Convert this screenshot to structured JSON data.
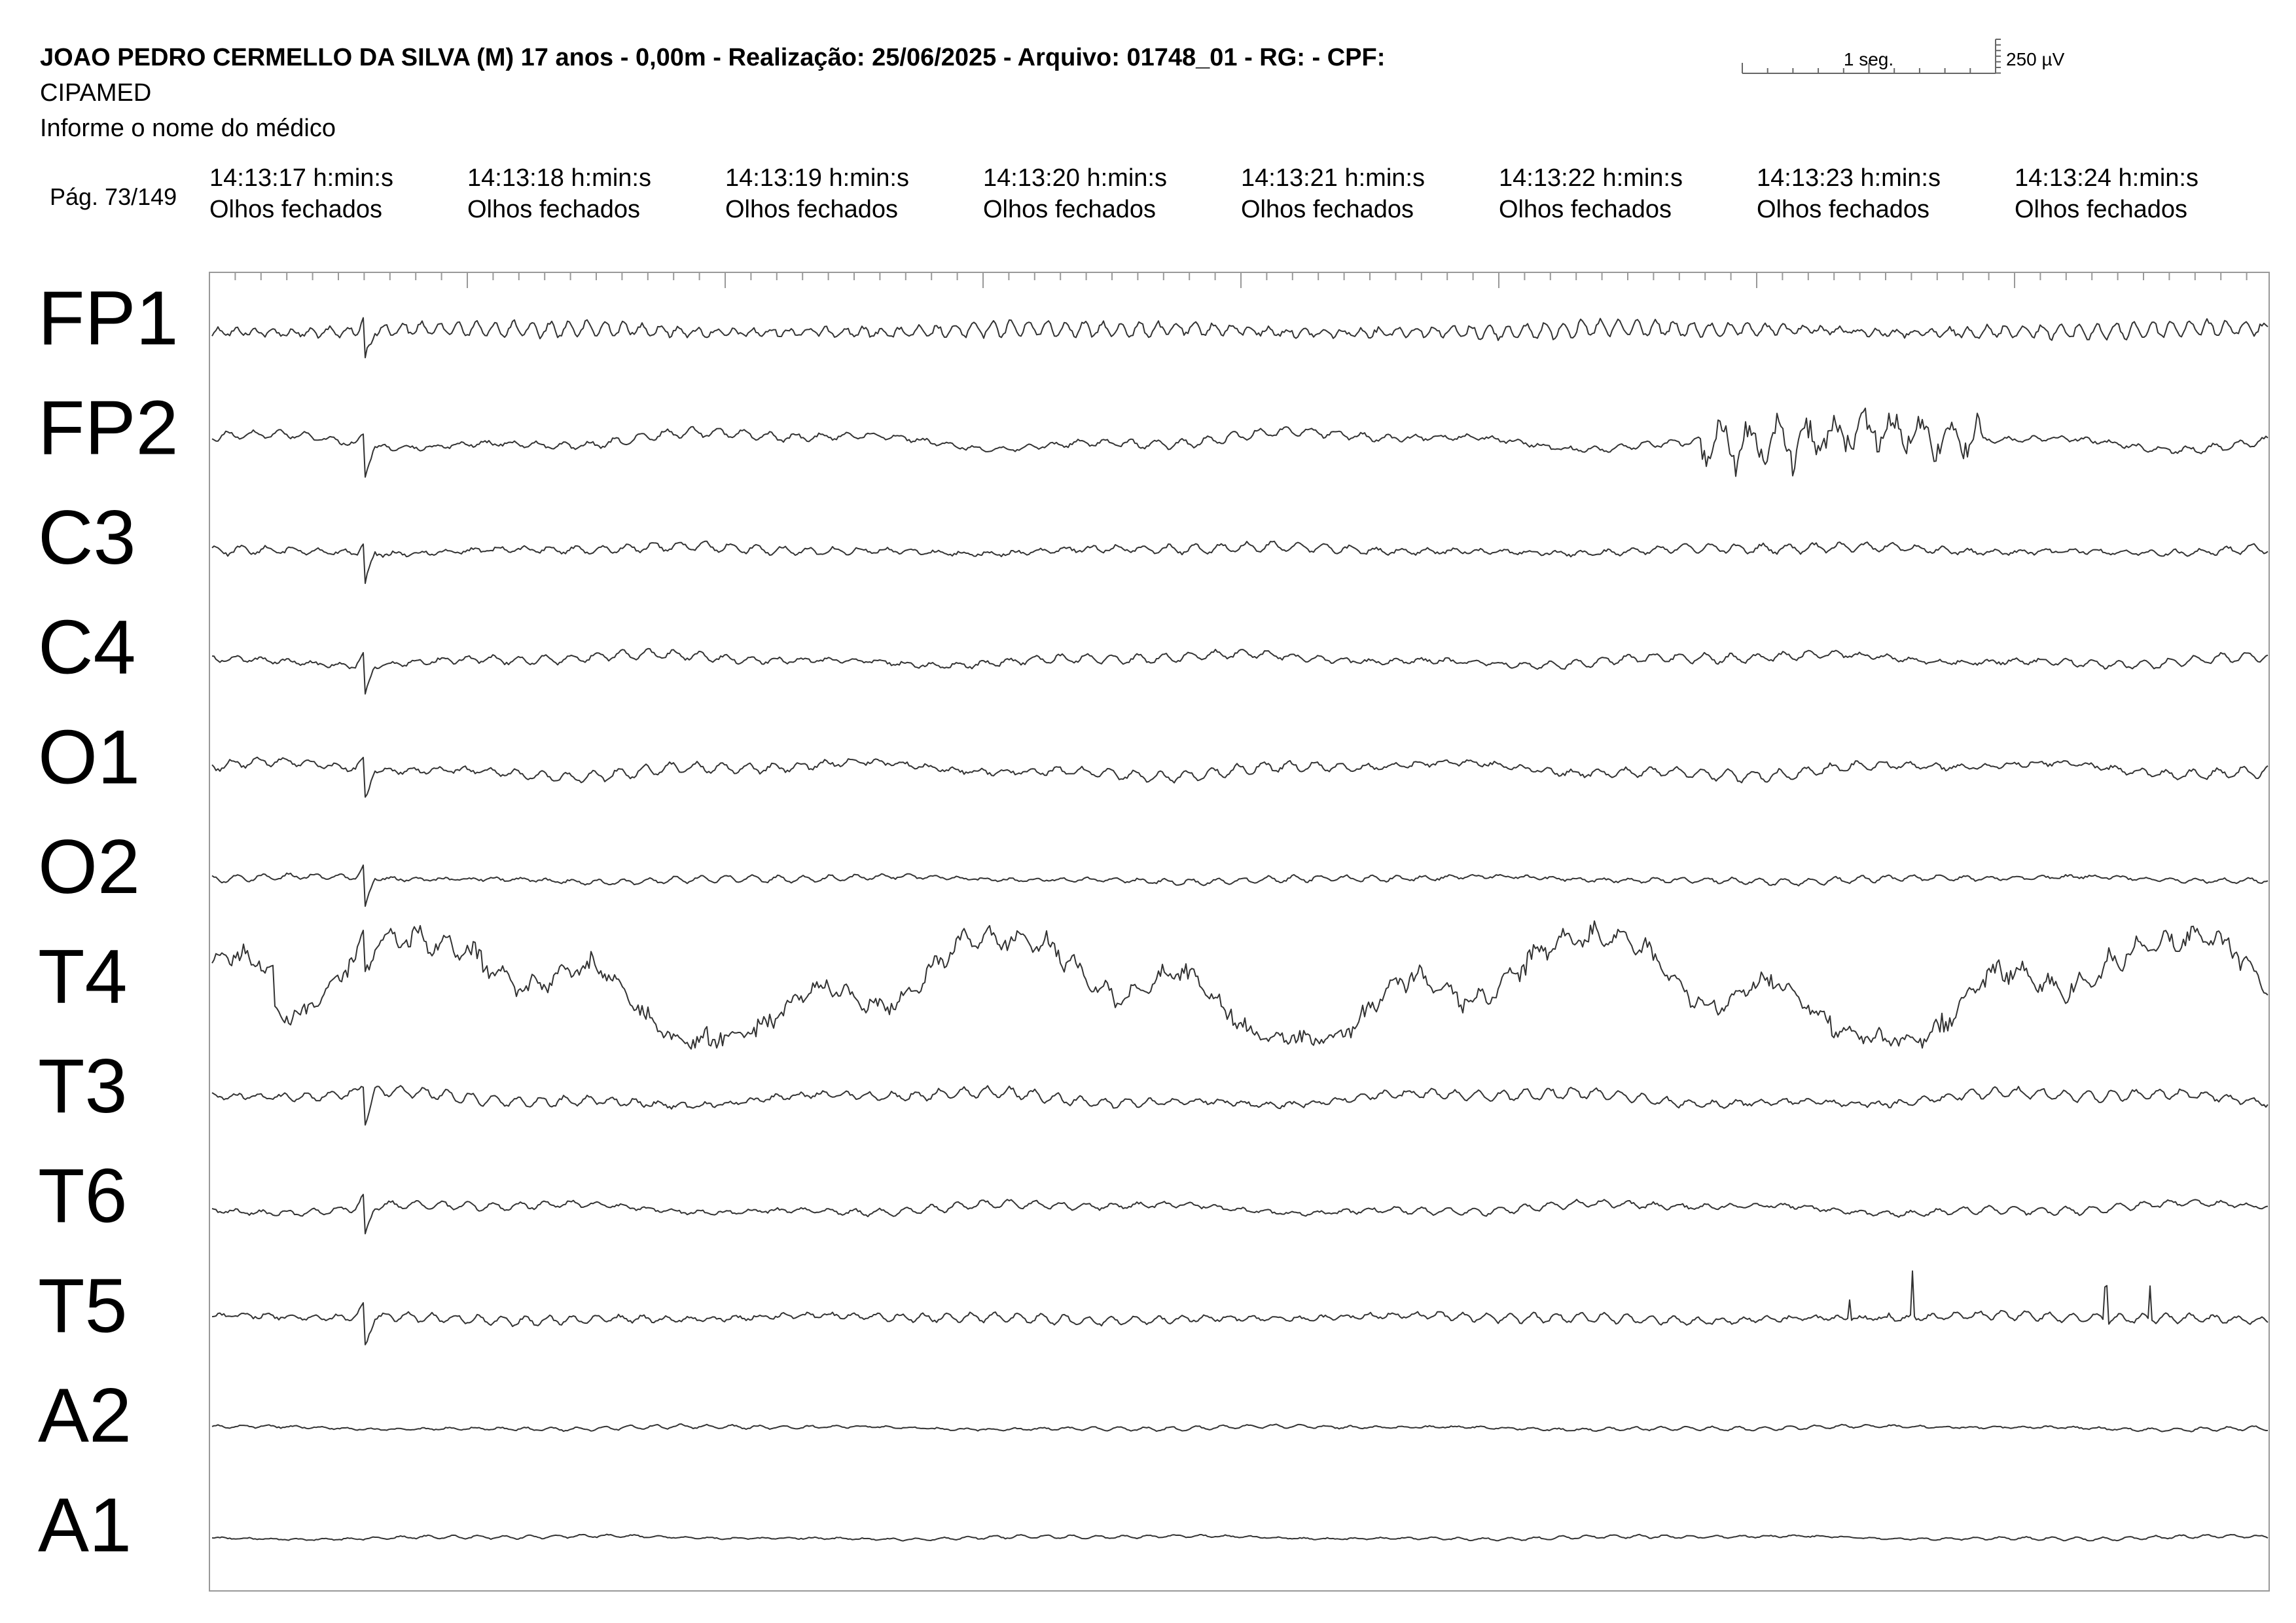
{
  "header": {
    "title": "JOAO PEDRO CERMELLO DA SILVA (M) 17 anos - 0,00m - Realização: 25/06/2025 - Arquivo: 01748_01 - RG:  - CPF:",
    "clinic": "CIPAMED",
    "doctor": "Informe o nome do médico",
    "time_scale": "1 seg.",
    "amplitude_scale": "250 µV",
    "page": "Pág. 73/149"
  },
  "columns": [
    {
      "time": "14:13:17 h:min:s",
      "state": "Olhos fechados"
    },
    {
      "time": "14:13:18 h:min:s",
      "state": "Olhos fechados"
    },
    {
      "time": "14:13:19 h:min:s",
      "state": "Olhos fechados"
    },
    {
      "time": "14:13:20 h:min:s",
      "state": "Olhos fechados"
    },
    {
      "time": "14:13:21 h:min:s",
      "state": "Olhos fechados"
    },
    {
      "time": "14:13:22 h:min:s",
      "state": "Olhos fechados"
    },
    {
      "time": "14:13:23 h:min:s",
      "state": "Olhos fechados"
    },
    {
      "time": "14:13:24 h:min:s",
      "state": "Olhos fechados"
    }
  ],
  "channels": [
    "FP1",
    "FP2",
    "C3",
    "C4",
    "O1",
    "O2",
    "T4",
    "T3",
    "T6",
    "T5",
    "A2",
    "A1"
  ]
}
